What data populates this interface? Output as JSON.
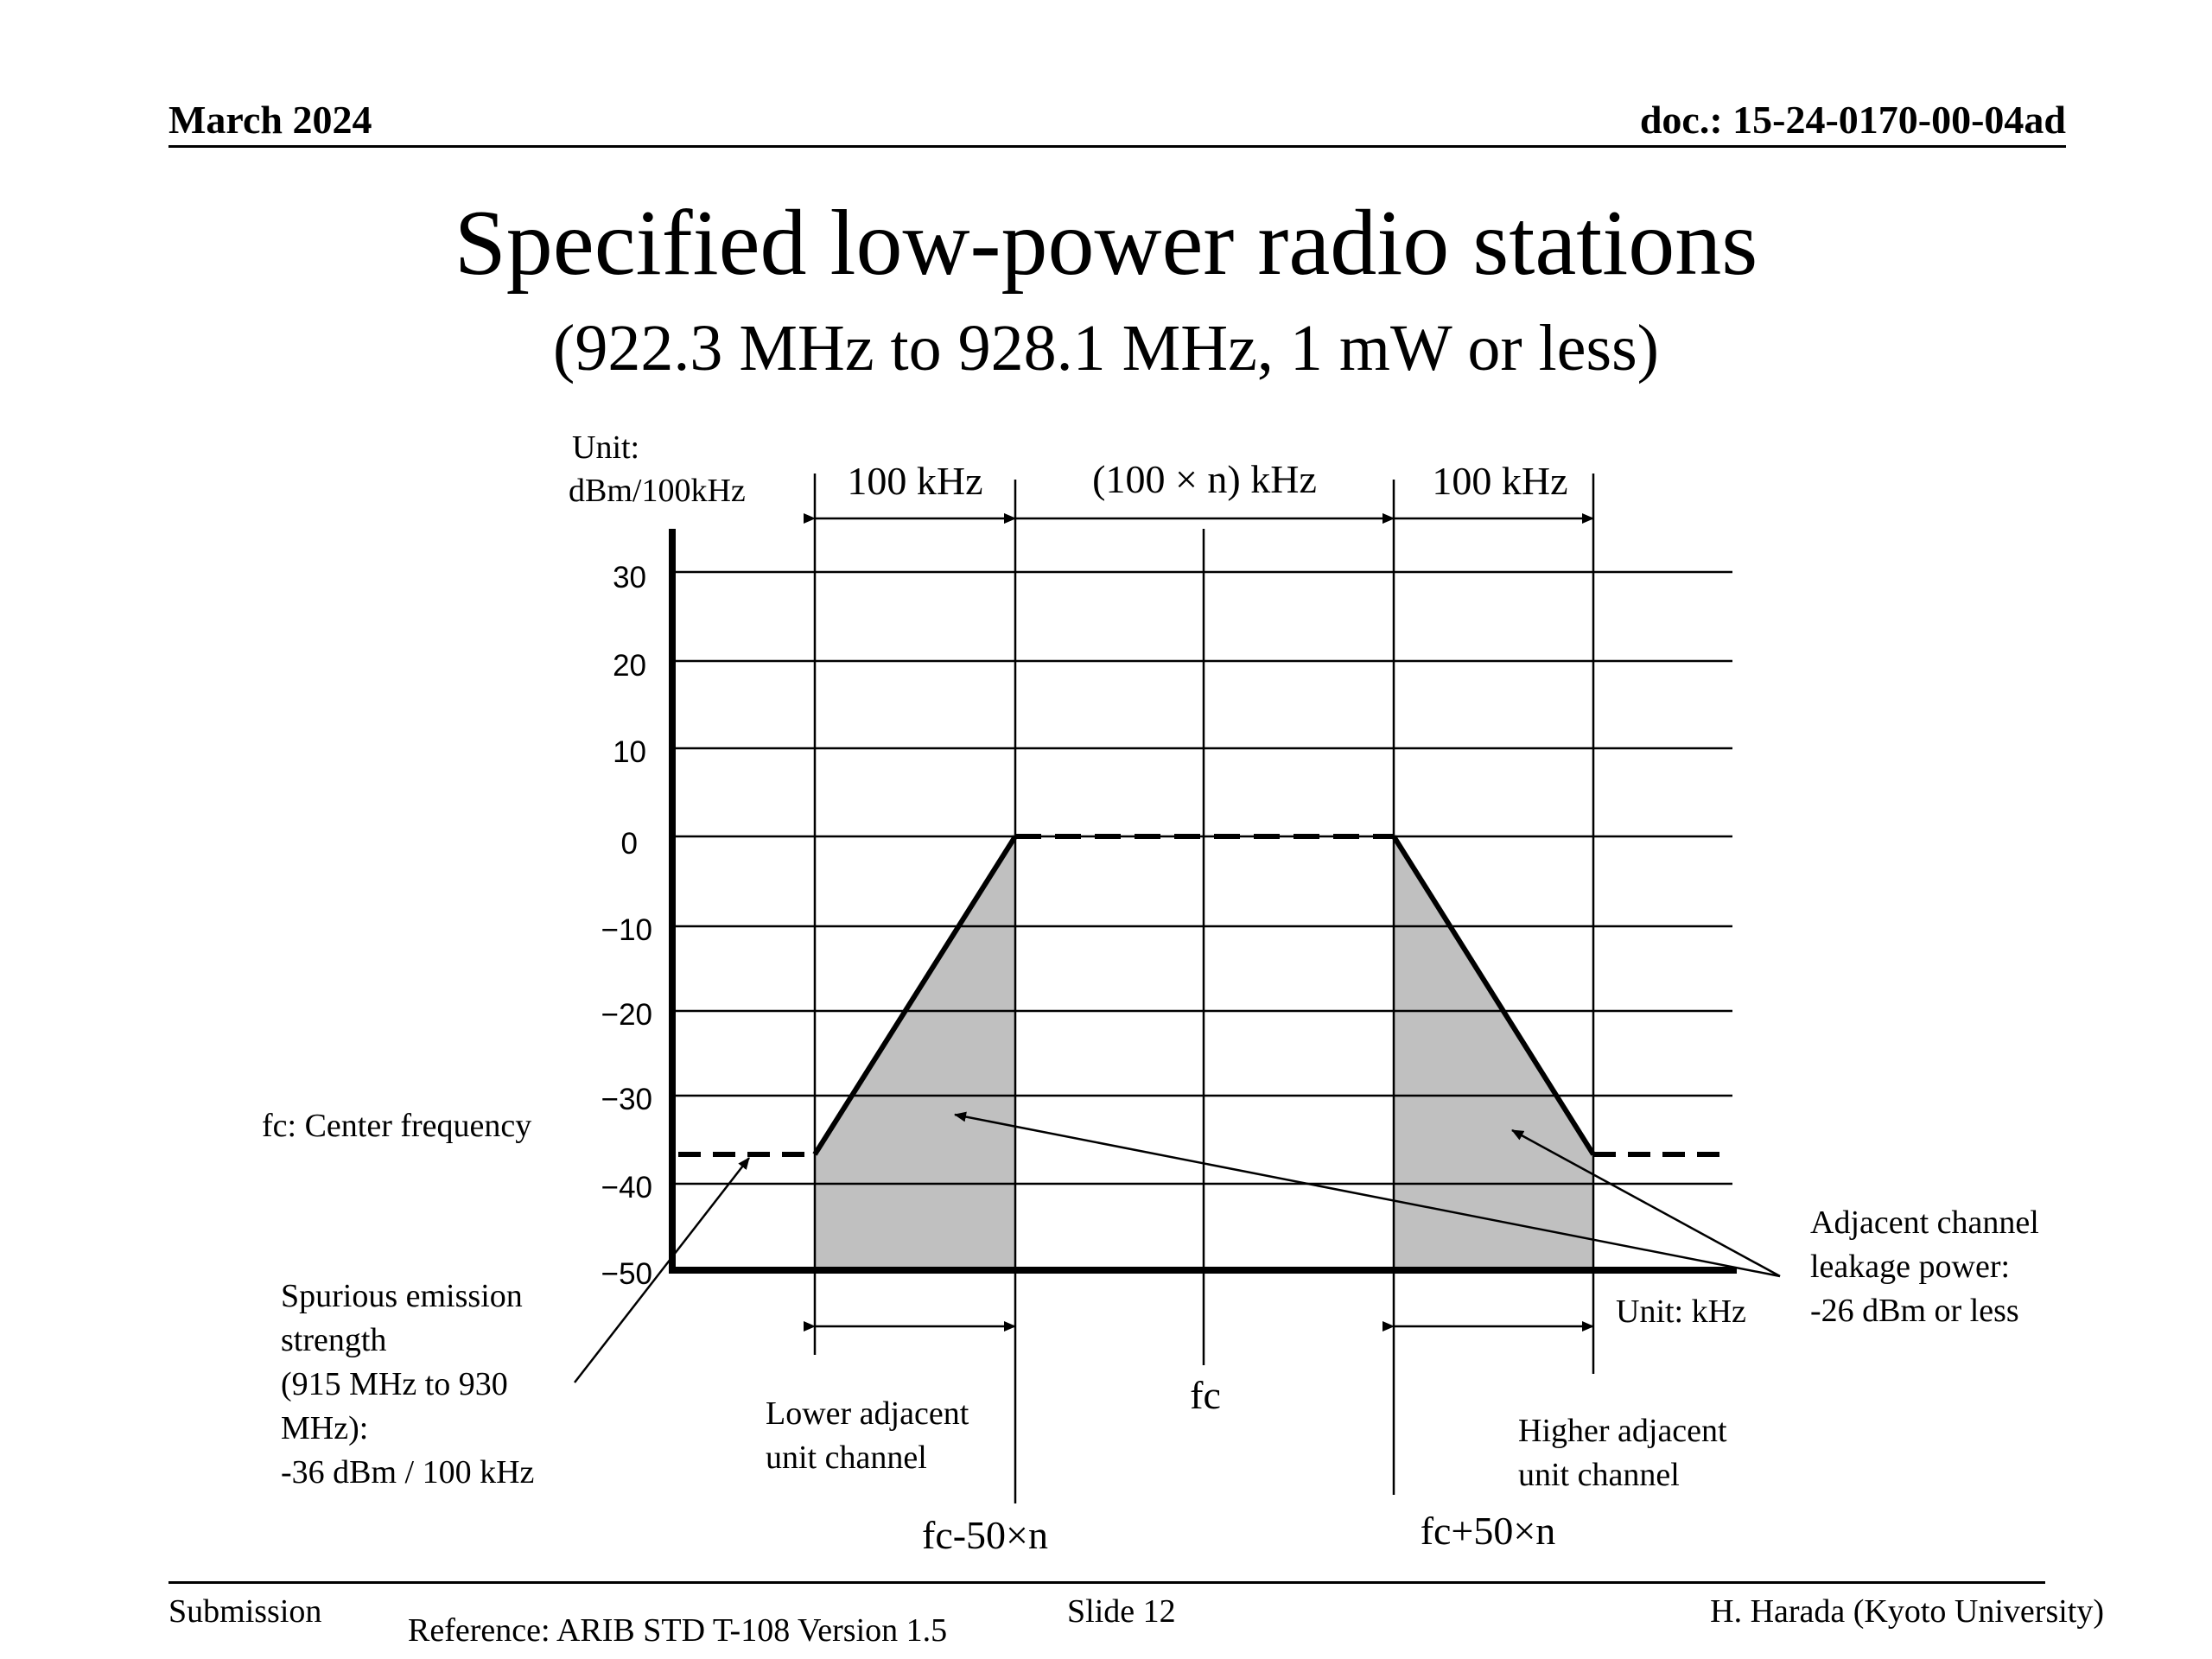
{
  "header": {
    "date": "March 2024",
    "doc": "doc.: 15-24-0170-00-04ad"
  },
  "title": "Specified low-power radio stations",
  "subtitle": "(922.3 MHz to 928.1 MHz, 1 mW or less)",
  "diagram": {
    "unit_y": [
      "Unit:",
      "dBm/100kHz"
    ],
    "unit_x": "Unit: kHz",
    "y_ticks": [
      "30",
      "20",
      "10",
      "0",
      "−10",
      "−20",
      "−30",
      "−40",
      "−50"
    ],
    "y_values": [
      30,
      20,
      10,
      0,
      -10,
      -20,
      -30,
      -40,
      -50
    ],
    "bandwidth_labels": {
      "left": "100 kHz",
      "center": "(100 × n) kHz",
      "right": "100 kHz"
    },
    "mask": {
      "in_band_level_dbm": 0,
      "spurious_level_dbm": -36,
      "floor_dbm": -50
    },
    "annotations": {
      "center_frequency_note": "fc: Center frequency",
      "spurious": [
        "Spurious emission",
        "strength",
        "(915 MHz to 930",
        "MHz):",
        "-36 dBm / 100 kHz"
      ],
      "adjacent": [
        "Adjacent channel",
        "leakage power:",
        "-26 dBm or less"
      ],
      "lower_channel": [
        "Lower adjacent",
        "unit channel"
      ],
      "higher_channel": [
        "Higher adjacent",
        "unit channel"
      ],
      "fc": "fc",
      "fc_minus": "fc-50×n",
      "fc_plus": "fc+50×n"
    },
    "colors": {
      "shade": "#c0c0c0",
      "line": "#000000"
    }
  },
  "footer": {
    "left": "Submission",
    "reference": "Reference: ARIB STD T-108 Version 1.5",
    "slide": "Slide 12",
    "author": "H. Harada (Kyoto University)"
  }
}
